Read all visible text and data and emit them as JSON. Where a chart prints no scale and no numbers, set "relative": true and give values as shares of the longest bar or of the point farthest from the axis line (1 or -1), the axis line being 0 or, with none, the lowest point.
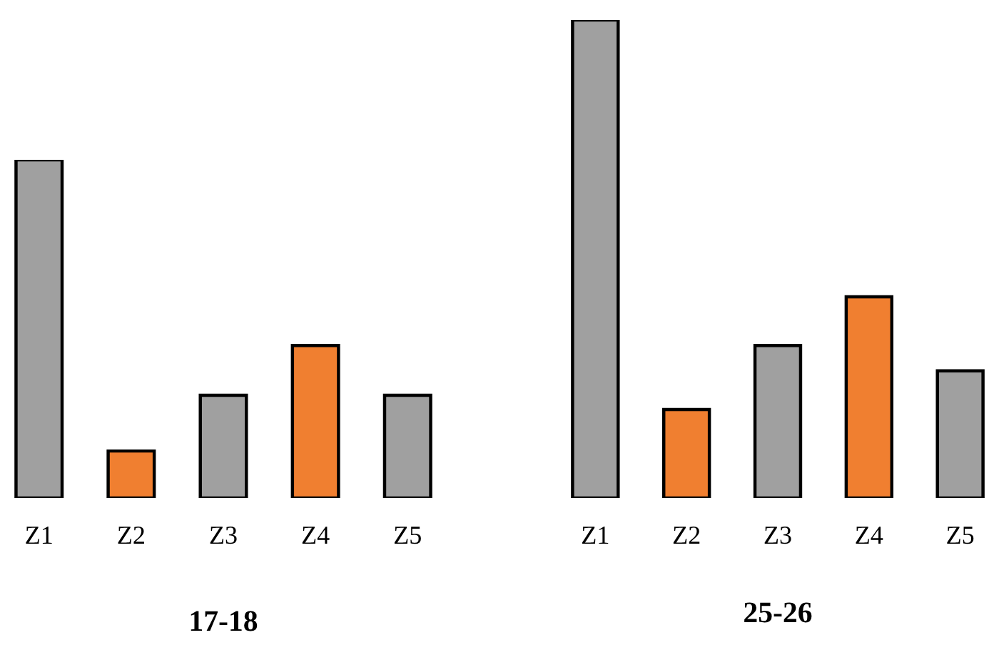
{
  "chart_data": [
    {
      "type": "bar",
      "title": "17-18",
      "relative": true,
      "categories": [
        "Z1",
        "Z2",
        "Z3",
        "Z4",
        "Z5"
      ],
      "values": [
        1,
        0.139,
        0.304,
        0.451,
        0.304
      ],
      "colors": [
        "#a0a0a0",
        "#f07f30",
        "#a0a0a0",
        "#f07f30",
        "#a0a0a0"
      ],
      "grid": false,
      "legend": false
    },
    {
      "type": "bar",
      "title": "25-26",
      "relative": true,
      "categories": [
        "Z1",
        "Z2",
        "Z3",
        "Z4",
        "Z5"
      ],
      "values": [
        1,
        0.185,
        0.319,
        0.421,
        0.266
      ],
      "colors": [
        "#a0a0a0",
        "#f07f30",
        "#a0a0a0",
        "#f07f30",
        "#a0a0a0"
      ],
      "grid": false,
      "legend": false
    }
  ]
}
